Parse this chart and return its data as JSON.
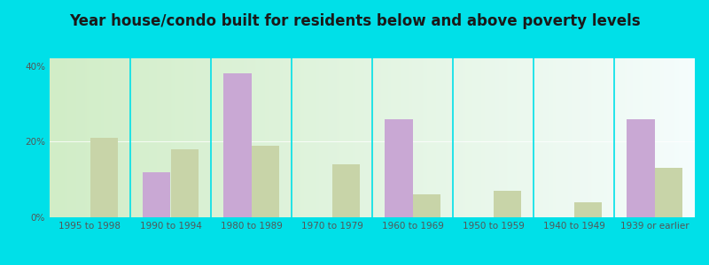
{
  "title": "Year house/condo built for residents below and above poverty levels",
  "categories": [
    "1995 to 1998",
    "1990 to 1994",
    "1980 to 1989",
    "1970 to 1979",
    "1960 to 1969",
    "1950 to 1959",
    "1940 to 1949",
    "1939 or earlier"
  ],
  "below_poverty": [
    0,
    12,
    38,
    0,
    26,
    0,
    0,
    26
  ],
  "above_poverty": [
    21,
    18,
    19,
    14,
    6,
    7,
    4,
    13
  ],
  "below_color": "#c9a8d4",
  "above_color": "#c8d4a8",
  "bar_width": 0.35,
  "ylim": [
    0,
    42
  ],
  "yticks": [
    0,
    20,
    40
  ],
  "ytick_labels": [
    "0%",
    "20%",
    "40%"
  ],
  "background_outer": "#00e0e8",
  "title_fontsize": 12,
  "tick_fontsize": 7.5,
  "legend_fontsize": 9
}
